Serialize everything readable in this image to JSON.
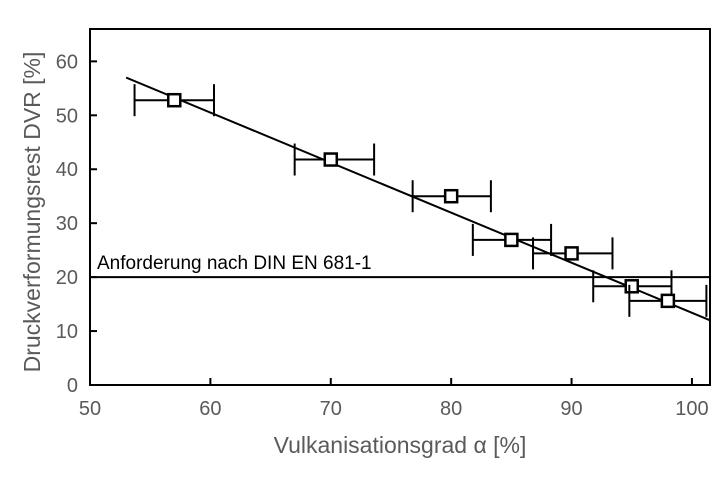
{
  "chart_data": {
    "type": "scatter",
    "title": "",
    "xlabel": "Vulkanisationsgrad α [%]",
    "ylabel": "Druckverformungsrest  DVR [%]",
    "xlim": [
      50,
      101.5
    ],
    "ylim": [
      0,
      66
    ],
    "x_ticks": [
      50,
      60,
      70,
      80,
      90,
      100
    ],
    "y_ticks": [
      0,
      10,
      20,
      30,
      40,
      50,
      60
    ],
    "grid": false,
    "legend": "none",
    "points": [
      {
        "x": 57,
        "y": 52.8,
        "xerr": [
          53.7,
          60.3
        ]
      },
      {
        "x": 70,
        "y": 41.8,
        "xerr": [
          67.0,
          73.6
        ]
      },
      {
        "x": 80,
        "y": 35.0,
        "xerr": [
          76.8,
          83.3
        ]
      },
      {
        "x": 85,
        "y": 26.9,
        "xerr": [
          81.8,
          88.3
        ]
      },
      {
        "x": 90,
        "y": 24.4,
        "xerr": [
          86.8,
          93.4
        ]
      },
      {
        "x": 95,
        "y": 18.3,
        "xerr": [
          91.8,
          98.3
        ]
      },
      {
        "x": 98,
        "y": 15.6,
        "xerr": [
          94.8,
          101.2
        ]
      }
    ],
    "fit_line": {
      "x": [
        53,
        101.5
      ],
      "y": [
        57,
        12
      ]
    },
    "reference_line": {
      "y": 20,
      "label": "Anforderung nach DIN EN 681-1"
    },
    "colors": {
      "axis": "#000000",
      "marker": "#000000",
      "text": "#5a5a5a"
    }
  }
}
